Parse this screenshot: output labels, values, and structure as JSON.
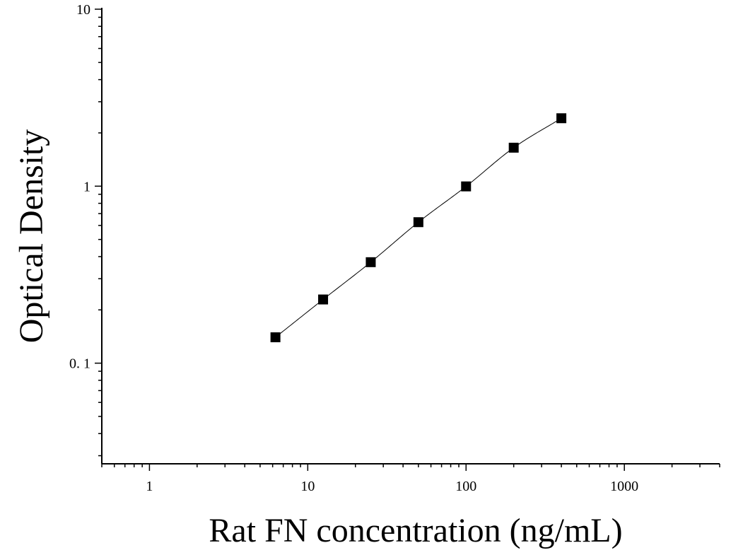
{
  "chart_data": {
    "type": "scatter",
    "title": "",
    "xlabel": "Rat FN concentration (ng/mL)",
    "ylabel": "Optical Density",
    "x_scale": "log",
    "y_scale": "log",
    "xlim": [
      0.5,
      4000
    ],
    "ylim": [
      0.027,
      10
    ],
    "x_ticks": [
      1,
      10,
      100,
      1000
    ],
    "x_tick_labels": [
      "1",
      "10",
      "100",
      "1000"
    ],
    "y_ticks": [
      0.1,
      1,
      10
    ],
    "y_tick_labels": [
      "0. 1",
      "1",
      "10"
    ],
    "grid": false,
    "series": [
      {
        "marker": "square",
        "color": "#000000",
        "x": [
          6.25,
          12.5,
          25,
          50,
          100,
          200,
          400
        ],
        "y": [
          0.14,
          0.229,
          0.372,
          0.626,
          0.997,
          1.65,
          2.42
        ]
      }
    ],
    "fit_curve": {
      "color": "#000000"
    }
  }
}
